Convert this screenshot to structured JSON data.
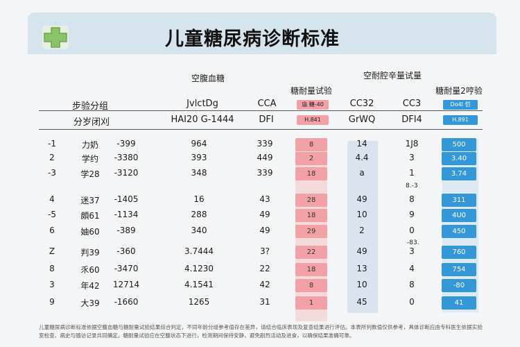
{
  "title": "儿童糖尿病诊断标准",
  "logo": {
    "icon": "medical-cross-icon",
    "color": "#8cc46a"
  },
  "headers": {
    "fasting": "空腹血糖",
    "tolerance_right": "空耐腔辛量试量",
    "tolerance_test": "糖耐量试验",
    "tolerance_2h": "糖耐量2哼验",
    "step_group": "步验分组",
    "sub_group": "分岁闭刈",
    "fasting_sub1": "JvlctDg",
    "fasting_sub2": "HAI20 G-1444",
    "c5_sub1": "CCA",
    "c5_sub2": "DFI",
    "pink_top": "庙 糖-40",
    "pink_sub": "H.841",
    "c7_sub1": "CC32",
    "c7_sub2": "GrWQ",
    "c8_sub1": "CC3",
    "c8_sub2": "DFI4",
    "blue_top": "Do4l 忉",
    "blue_sub": "H.891"
  },
  "colors": {
    "pink": "#f2a1a6",
    "pink_col": "#f6c3c6",
    "lightblue_col": "#d9e4ee",
    "blue": "#3497d8",
    "blue_col": "#3a9bdb"
  },
  "rows": [
    {
      "num": "-1",
      "name": "力奶",
      "code": "-399",
      "c4": "964",
      "c5": "339",
      "c6": "8",
      "c7": "14",
      "c8": "1J8",
      "c9": "500"
    },
    {
      "num": "2",
      "name": "学约",
      "code": "-3380",
      "c4": "393",
      "c5": "449",
      "c6": "2",
      "c7": "4.4",
      "c8": "3",
      "c9": "3.40"
    },
    {
      "num": "-3",
      "name": "学28",
      "code": "-3120",
      "c4": "348",
      "c5": "339",
      "c6": "18",
      "c7": "a",
      "c8": "1",
      "c9": "3.74"
    },
    {
      "num": "4",
      "name": "迷37",
      "code": "-1405",
      "c4": "16",
      "c5": "43",
      "c6": "28",
      "c7": "49",
      "c8": "8",
      "c9": "311"
    },
    {
      "num": "-5",
      "name": "頗61",
      "code": "-1134",
      "c4": "288",
      "c5": "49",
      "c6": "18",
      "c7": "10",
      "c8": "9",
      "c9": "4U0"
    },
    {
      "num": "6",
      "name": "妯60",
      "code": "-389",
      "c4": "340",
      "c5": "49",
      "c6": "29",
      "c7": "2",
      "c8": "0",
      "c9": "450"
    },
    {
      "num": "Z",
      "name": "判39",
      "code": "-360",
      "c4": "3.7444",
      "c5": "3?",
      "c6": "22",
      "c7": "49",
      "c8": "3",
      "c9": "760"
    },
    {
      "num": "8",
      "name": "乑60",
      "code": "-3470",
      "c4": "4.1230",
      "c5": "22",
      "c6": "18",
      "c7": "13",
      "c8": "4",
      "c9": "754"
    },
    {
      "num": "3",
      "name": "年42",
      "code": "12714",
      "c4": "4.1541",
      "c5": "42",
      "c6": "8",
      "c7": "10",
      "c8": "8",
      "c9": "-80"
    },
    {
      "num": "9",
      "name": "大39",
      "code": "-1660",
      "c4": "1265",
      "c5": "31",
      "c6": "1",
      "c7": "45",
      "c8": "0",
      "c9": "41"
    }
  ],
  "extras": {
    "note_a": "8.-3",
    "note_b": "-83."
  },
  "footer": "儿童糖尿病诊断标准依据空腹血糖与糖耐量试验结果综合判定，不同年龄分组参考值存在差异，请结合临床表现及复查结果进行评估。本表所列数值仅供参考，具体诊断应由专科医生依据实验室检查、病史与随访记录共同确定。糖耐量试验应在空腹状态下进行，检测期间保持安静，避免剧烈活动及进食，以确保结果准确可靠。"
}
